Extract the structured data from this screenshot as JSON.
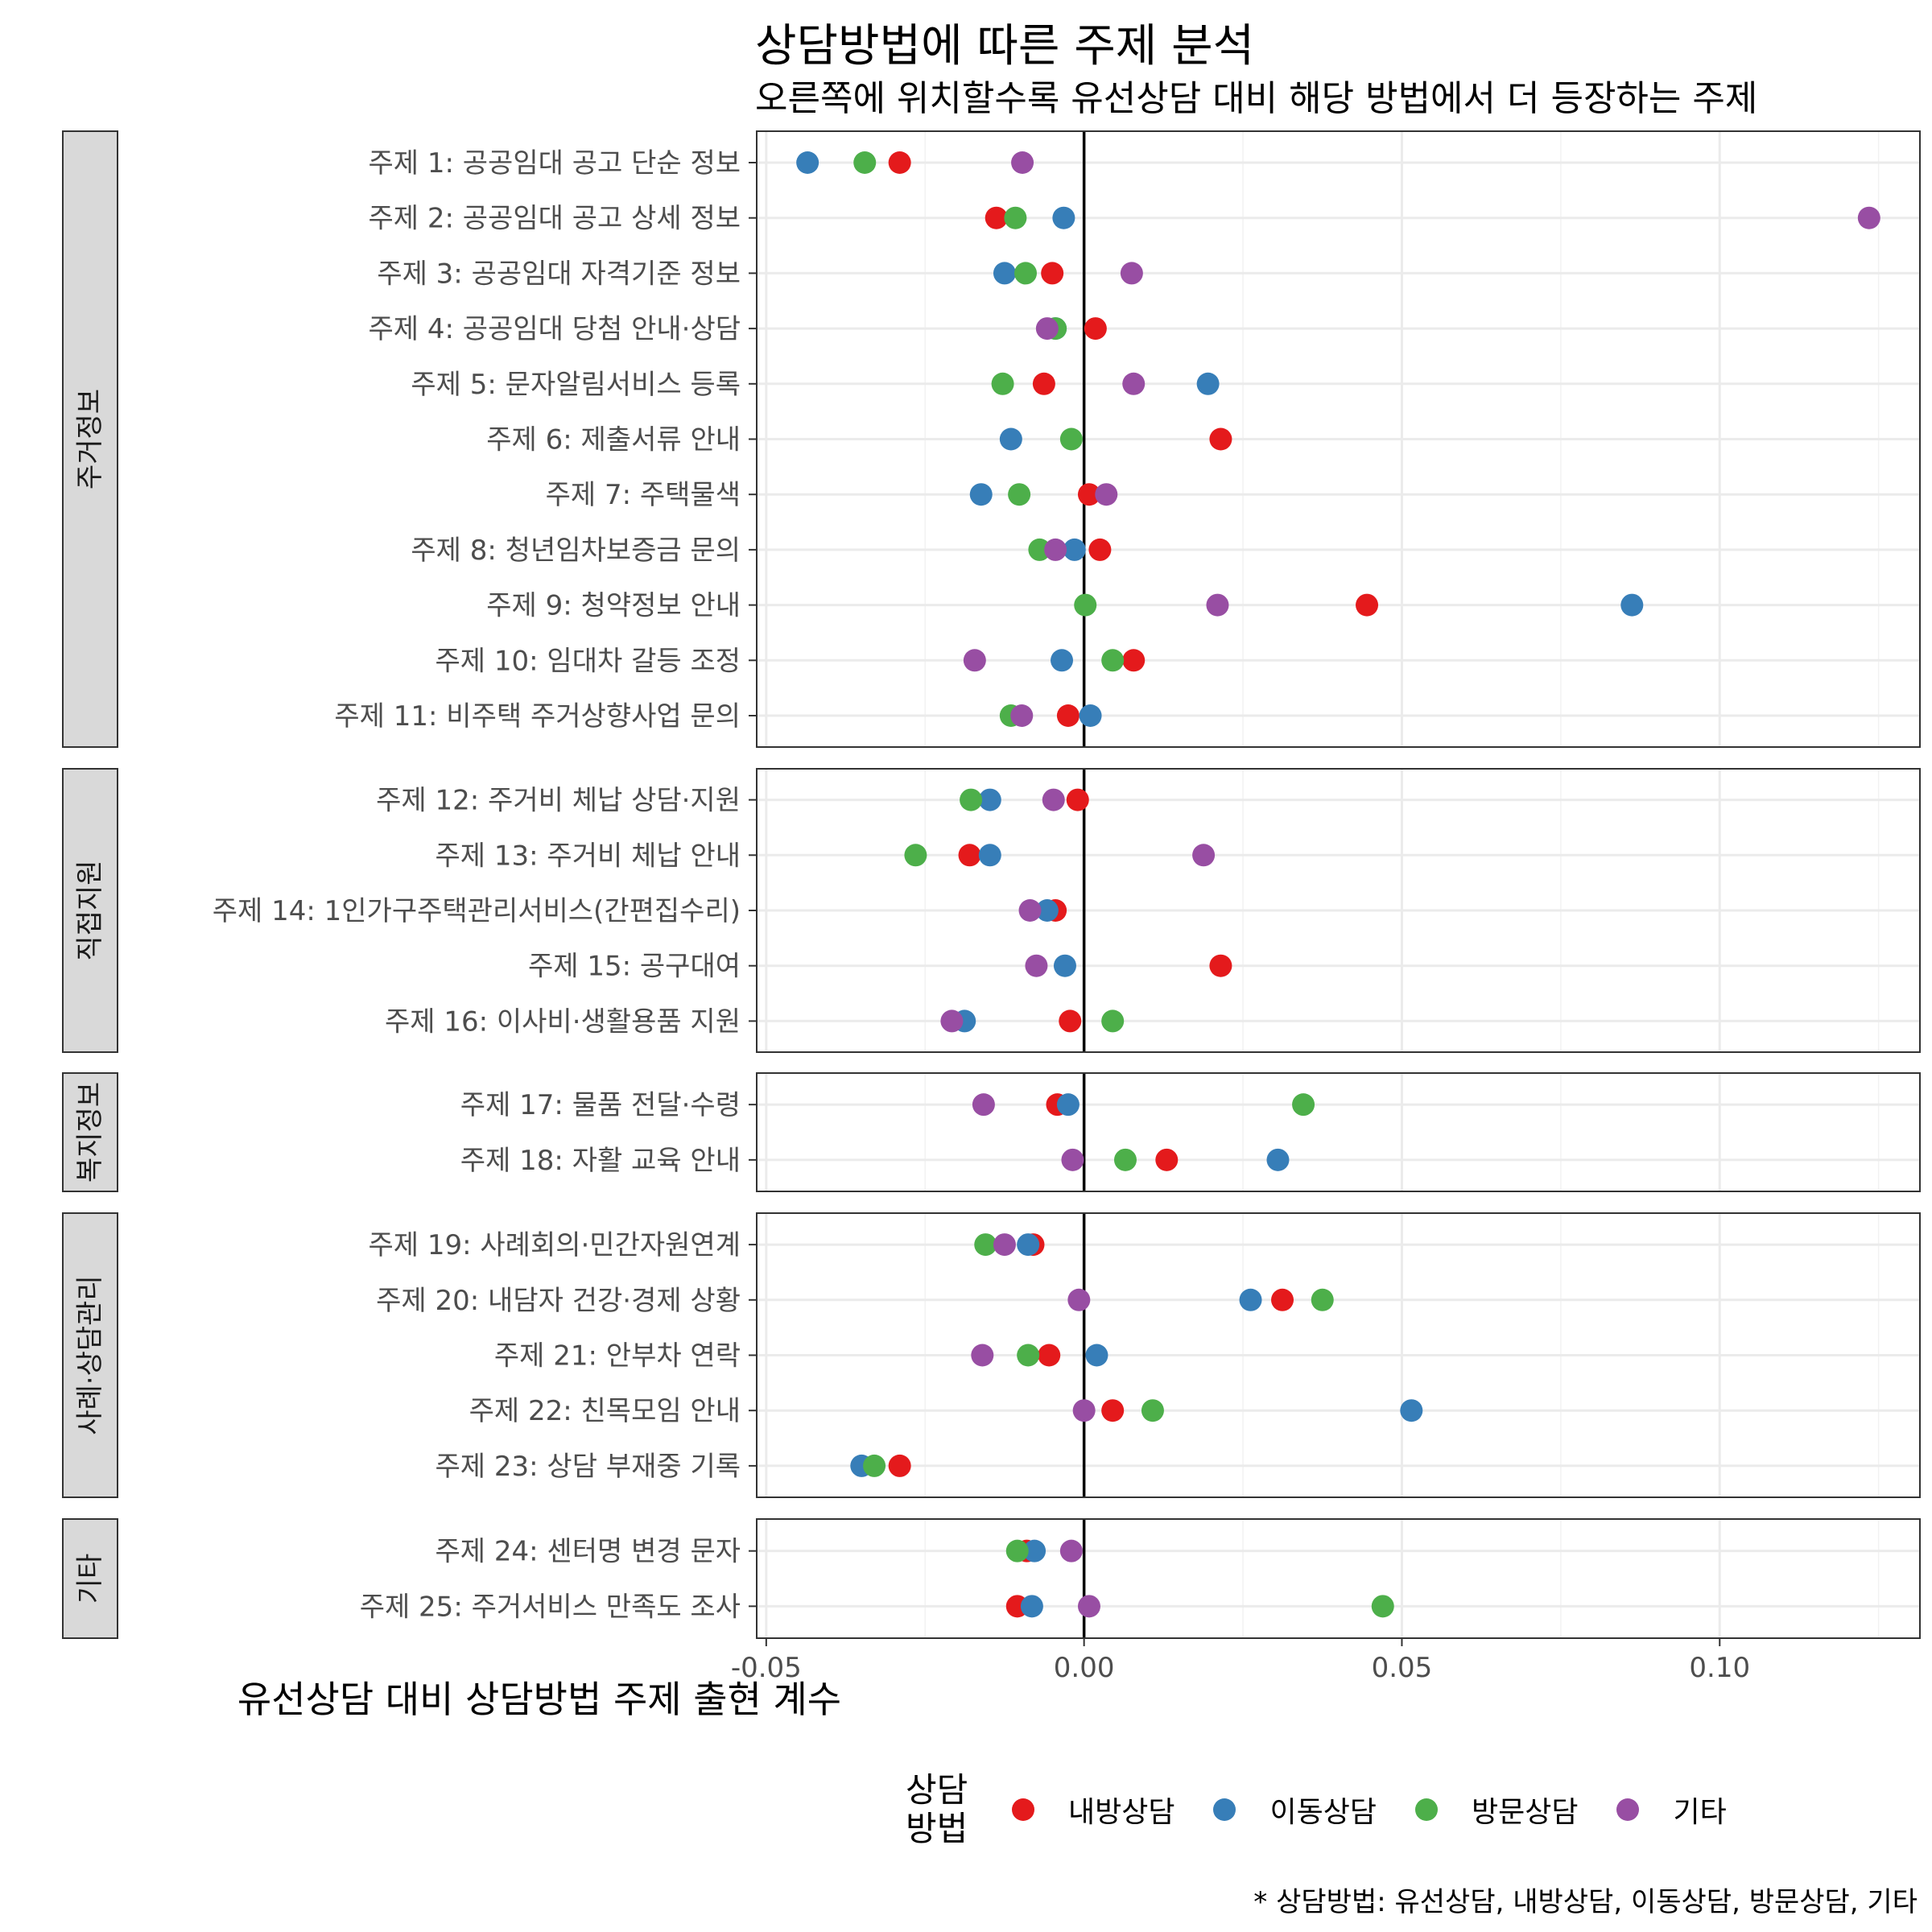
{
  "chart_data": {
    "type": "scatter",
    "title": "상담방법에 따른 주제 분석",
    "subtitle": "오른쪽에 위치할수록 유선상담 대비 해당 방법에서 더 등장하는 주제",
    "xlabel": "유선상담 대비 상담방법 주제 출현 계수",
    "caption": "* 상담방법: 유선상담, 내방상담, 이동상담, 방문상담, 기타",
    "xlim": [
      -0.0515,
      0.1315
    ],
    "x_ticks": [
      -0.05,
      0.0,
      0.05,
      0.1
    ],
    "x_tick_labels": [
      "-0.05",
      "0.00",
      "0.05",
      "0.10"
    ],
    "reference_line": 0,
    "grid": true,
    "legend": {
      "title": "상담\n방법",
      "position": "bottom",
      "entries": [
        {
          "name": "내방상담",
          "color": "#E41A1C"
        },
        {
          "name": "이동상담",
          "color": "#377EB8"
        },
        {
          "name": "방문상담",
          "color": "#4DAF4A"
        },
        {
          "name": "기타",
          "color": "#984EA3"
        }
      ]
    },
    "series": [
      {
        "name": "내방상담",
        "color": "#E41A1C"
      },
      {
        "name": "이동상담",
        "color": "#377EB8"
      },
      {
        "name": "방문상담",
        "color": "#4DAF4A"
      },
      {
        "name": "기타",
        "color": "#984EA3"
      }
    ],
    "panels": [
      {
        "label": "주거정보",
        "topics": [
          {
            "label": "주제 1: 공공임대 공고 단순 정보",
            "values": [
              -0.029,
              -0.0435,
              -0.0345,
              -0.0097
            ]
          },
          {
            "label": "주제 2: 공공임대 공고 상세 정보",
            "values": [
              -0.0138,
              -0.0032,
              -0.0108,
              0.1235
            ]
          },
          {
            "label": "주제 3: 공공임대 자격기준 정보",
            "values": [
              -0.005,
              -0.0125,
              -0.0092,
              0.0075
            ]
          },
          {
            "label": "주제 4: 공공임대 당첨 안내·상담",
            "values": [
              0.0018,
              -0.0045,
              -0.0045,
              -0.0058
            ]
          },
          {
            "label": "주제 5: 문자알림서비스 등록",
            "values": [
              -0.0063,
              0.0195,
              -0.0128,
              0.0078
            ]
          },
          {
            "label": "주제 6: 제출서류 안내",
            "values": [
              0.0215,
              -0.0115,
              -0.002,
              null
            ]
          },
          {
            "label": "주제 7: 주택물색",
            "values": [
              0.0008,
              -0.0162,
              -0.0102,
              0.0035
            ]
          },
          {
            "label": "주제 8: 청년임차보증금 문의",
            "values": [
              0.0025,
              -0.0015,
              -0.007,
              -0.0045
            ]
          },
          {
            "label": "주제 9: 청약정보 안내",
            "values": [
              0.0445,
              0.0862,
              0.0002,
              0.021
            ]
          },
          {
            "label": "주제 10: 임대차 갈등 조정",
            "values": [
              0.0078,
              -0.0035,
              0.0045,
              -0.0172
            ]
          },
          {
            "label": "주제 11: 비주택 주거상향사업 문의",
            "values": [
              -0.0025,
              0.001,
              -0.0115,
              -0.0098
            ]
          }
        ]
      },
      {
        "label": "직접지원",
        "topics": [
          {
            "label": "주제 12: 주거비 체납 상담·지원",
            "values": [
              -0.001,
              -0.0148,
              -0.0178,
              -0.0048
            ]
          },
          {
            "label": "주제 13: 주거비 체납 안내",
            "values": [
              -0.018,
              -0.0148,
              -0.0265,
              0.0188
            ]
          },
          {
            "label": "주제 14: 1인가구주택관리서비스(간편집수리)",
            "values": [
              -0.0045,
              -0.0058,
              null,
              -0.0085
            ]
          },
          {
            "label": "주제 15: 공구대여",
            "values": [
              0.0215,
              -0.003,
              null,
              -0.0075
            ]
          },
          {
            "label": "주제 16: 이사비·생활용품 지원",
            "values": [
              -0.0022,
              -0.0188,
              0.0045,
              -0.0208
            ]
          }
        ]
      },
      {
        "label": "복지정보",
        "topics": [
          {
            "label": "주제 17: 물품 전달·수령",
            "values": [
              -0.0042,
              -0.0025,
              0.0345,
              -0.0158
            ]
          },
          {
            "label": "주제 18: 자활 교육 안내",
            "values": [
              0.013,
              0.0305,
              0.0065,
              -0.0018
            ]
          }
        ]
      },
      {
        "label": "사례·상담관리",
        "topics": [
          {
            "label": "주제 19: 사례회의·민간자원연계",
            "values": [
              -0.008,
              -0.0088,
              -0.0155,
              -0.0125
            ]
          },
          {
            "label": "주제 20: 내담자 건강·경제 상황",
            "values": [
              0.0312,
              0.0262,
              0.0375,
              -0.0008
            ]
          },
          {
            "label": "주제 21: 안부차 연락",
            "values": [
              -0.0055,
              0.002,
              -0.0088,
              -0.016
            ]
          },
          {
            "label": "주제 22: 친목모임 안내",
            "values": [
              0.0045,
              0.0515,
              0.0108,
              0.0
            ]
          },
          {
            "label": "주제 23: 상담 부재중 기록",
            "values": [
              -0.029,
              -0.035,
              -0.033,
              null
            ]
          }
        ]
      },
      {
        "label": "기타",
        "topics": [
          {
            "label": "주제 24: 센터명 변경 문자",
            "values": [
              -0.009,
              -0.0078,
              -0.0105,
              -0.002
            ]
          },
          {
            "label": "주제 25: 주거서비스 만족도 조사",
            "values": [
              -0.0105,
              -0.0082,
              0.047,
              0.0008
            ]
          }
        ]
      }
    ]
  }
}
